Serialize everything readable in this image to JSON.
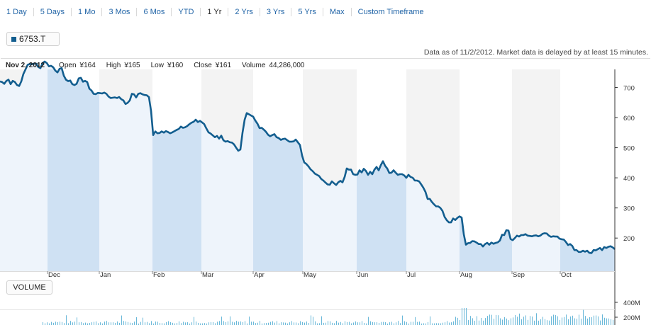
{
  "timeframes": [
    "1 Day",
    "5 Days",
    "1 Mo",
    "3 Mos",
    "6 Mos",
    "YTD",
    "1 Yr",
    "2 Yrs",
    "3 Yrs",
    "5 Yrs",
    "Max",
    "Custom Timeframe"
  ],
  "active_timeframe": "1 Yr",
  "ticker": "6753.T",
  "as_of_text": "Data as of 11/2/2012. Market data is delayed by at least 15 minutes.",
  "info": {
    "date": "Nov 2, 2012",
    "open_label": "Open",
    "open_value": "¥164",
    "high_label": "High",
    "high_value": "¥165",
    "low_label": "Low",
    "low_value": "¥160",
    "close_label": "Close",
    "close_value": "¥161",
    "volume_label": "Volume",
    "volume_value": "44,286,000"
  },
  "volume_button": "VOLUME",
  "colors": {
    "line": "#135e8f",
    "fill": "#cfe1f3",
    "band": "#f3f3f3",
    "vol": "#69b8d9"
  },
  "chart_data": {
    "type": "line",
    "months": [
      "Dec",
      "Jan",
      "Feb",
      "Mar",
      "Apr",
      "May",
      "Jun",
      "Jul",
      "Aug",
      "Sep",
      "Oct"
    ],
    "y_ticks": [
      200,
      300,
      400,
      500,
      600,
      700
    ],
    "ylim": [
      90,
      760
    ],
    "series": [
      {
        "points": [
          [
            0,
            720
          ],
          [
            3,
            718
          ],
          [
            6,
            712
          ],
          [
            9,
            722
          ],
          [
            12,
            726
          ],
          [
            15,
            711
          ],
          [
            18,
            722
          ],
          [
            21,
            718
          ],
          [
            24,
            708
          ],
          [
            27,
            705
          ],
          [
            30,
            720
          ],
          [
            33,
            745
          ],
          [
            36,
            760
          ],
          [
            39,
            775
          ],
          [
            42,
            778
          ],
          [
            45,
            777
          ],
          [
            48,
            779
          ],
          [
            51,
            779
          ],
          [
            54,
            768
          ],
          [
            57,
            764
          ],
          [
            60,
            781
          ],
          [
            63,
            786
          ],
          [
            66,
            781
          ],
          [
            69,
            770
          ],
          [
            72,
            772
          ],
          [
            75,
            767
          ],
          [
            78,
            756
          ],
          [
            81,
            750
          ],
          [
            84,
            762
          ],
          [
            87,
            764
          ],
          [
            90,
            739
          ],
          [
            93,
            726
          ],
          [
            96,
            721
          ],
          [
            99,
            723
          ],
          [
            102,
            711
          ],
          [
            105,
            708
          ],
          [
            108,
            712
          ],
          [
            111,
            730
          ],
          [
            114,
            732
          ],
          [
            117,
            719
          ],
          [
            120,
            722
          ],
          [
            123,
            718
          ],
          [
            126,
            696
          ],
          [
            129,
            690
          ],
          [
            132,
            679
          ],
          [
            135,
            678
          ],
          [
            138,
            682
          ],
          [
            141,
            681
          ],
          [
            144,
            680
          ],
          [
            147,
            683
          ],
          [
            150,
            679
          ],
          [
            153,
            670
          ],
          [
            156,
            665
          ],
          [
            159,
            666
          ],
          [
            162,
            667
          ],
          [
            165,
            665
          ],
          [
            168,
            668
          ],
          [
            171,
            661
          ],
          [
            174,
            657
          ],
          [
            177,
            645
          ],
          [
            180,
            649
          ],
          [
            183,
            657
          ],
          [
            186,
            679
          ],
          [
            189,
            677
          ],
          [
            192,
            667
          ],
          [
            195,
            679
          ],
          [
            198,
            681
          ],
          [
            201,
            677
          ],
          [
            204,
            675
          ],
          [
            207,
            674
          ],
          [
            210,
            668
          ],
          [
            213,
            622
          ],
          [
            216,
            542
          ],
          [
            219,
            554
          ],
          [
            222,
            548
          ],
          [
            225,
            549
          ],
          [
            228,
            554
          ],
          [
            231,
            550
          ],
          [
            234,
            555
          ],
          [
            237,
            552
          ],
          [
            240,
            548
          ],
          [
            243,
            551
          ],
          [
            246,
            555
          ],
          [
            249,
            559
          ],
          [
            252,
            562
          ],
          [
            255,
            570
          ],
          [
            258,
            566
          ],
          [
            261,
            568
          ],
          [
            264,
            572
          ],
          [
            267,
            578
          ],
          [
            270,
            583
          ],
          [
            273,
            586
          ],
          [
            276,
            593
          ],
          [
            279,
            585
          ],
          [
            282,
            589
          ],
          [
            285,
            584
          ],
          [
            288,
            578
          ],
          [
            291,
            564
          ],
          [
            294,
            551
          ],
          [
            297,
            547
          ],
          [
            300,
            541
          ],
          [
            303,
            535
          ],
          [
            306,
            539
          ],
          [
            309,
            530
          ],
          [
            312,
            540
          ],
          [
            315,
            525
          ],
          [
            318,
            520
          ],
          [
            321,
            522
          ],
          [
            324,
            518
          ],
          [
            327,
            517
          ],
          [
            330,
            511
          ],
          [
            333,
            500
          ],
          [
            336,
            490
          ],
          [
            339,
            494
          ],
          [
            342,
            550
          ],
          [
            345,
            593
          ],
          [
            348,
            615
          ],
          [
            351,
            611
          ],
          [
            354,
            607
          ],
          [
            357,
            603
          ],
          [
            360,
            590
          ],
          [
            363,
            580
          ],
          [
            366,
            565
          ],
          [
            369,
            566
          ],
          [
            372,
            560
          ],
          [
            375,
            553
          ],
          [
            378,
            543
          ],
          [
            381,
            538
          ],
          [
            384,
            542
          ],
          [
            387,
            545
          ],
          [
            390,
            535
          ],
          [
            393,
            532
          ],
          [
            396,
            526
          ],
          [
            399,
            529
          ],
          [
            402,
            530
          ],
          [
            405,
            525
          ],
          [
            408,
            520
          ],
          [
            411,
            520
          ],
          [
            414,
            521
          ],
          [
            417,
            527
          ],
          [
            420,
            518
          ],
          [
            423,
            509
          ],
          [
            426,
            474
          ],
          [
            429,
            451
          ],
          [
            432,
            446
          ],
          [
            435,
            438
          ],
          [
            438,
            428
          ],
          [
            441,
            422
          ],
          [
            444,
            414
          ],
          [
            447,
            410
          ],
          [
            450,
            406
          ],
          [
            453,
            396
          ],
          [
            456,
            391
          ],
          [
            459,
            384
          ],
          [
            462,
            378
          ],
          [
            465,
            377
          ],
          [
            468,
            388
          ],
          [
            471,
            382
          ],
          [
            474,
            376
          ],
          [
            477,
            385
          ],
          [
            480,
            390
          ],
          [
            483,
            385
          ],
          [
            486,
            403
          ],
          [
            489,
            431
          ],
          [
            492,
            427
          ],
          [
            495,
            427
          ],
          [
            498,
            412
          ],
          [
            501,
            410
          ],
          [
            504,
            411
          ],
          [
            507,
            425
          ],
          [
            510,
            418
          ],
          [
            513,
            430
          ],
          [
            516,
            423
          ],
          [
            519,
            410
          ],
          [
            522,
            420
          ],
          [
            525,
            412
          ],
          [
            528,
            427
          ],
          [
            531,
            436
          ],
          [
            534,
            425
          ],
          [
            537,
            442
          ],
          [
            540,
            455
          ],
          [
            543,
            440
          ],
          [
            546,
            431
          ],
          [
            549,
            416
          ],
          [
            552,
            417
          ],
          [
            555,
            425
          ],
          [
            558,
            417
          ],
          [
            561,
            410
          ],
          [
            564,
            412
          ],
          [
            567,
            412
          ],
          [
            570,
            408
          ],
          [
            573,
            400
          ],
          [
            576,
            410
          ],
          [
            579,
            403
          ],
          [
            582,
            400
          ],
          [
            585,
            391
          ],
          [
            588,
            391
          ],
          [
            591,
            388
          ],
          [
            594,
            378
          ],
          [
            597,
            367
          ],
          [
            600,
            353
          ],
          [
            603,
            330
          ],
          [
            606,
            330
          ],
          [
            609,
            320
          ],
          [
            612,
            312
          ],
          [
            615,
            305
          ],
          [
            618,
            305
          ],
          [
            621,
            300
          ],
          [
            624,
            290
          ],
          [
            627,
            270
          ],
          [
            630,
            259
          ],
          [
            633,
            252
          ],
          [
            636,
            252
          ],
          [
            639,
            265
          ],
          [
            642,
            260
          ],
          [
            645,
            267
          ],
          [
            648,
            272
          ],
          [
            651,
            268
          ],
          [
            654,
            213
          ],
          [
            657,
            178
          ],
          [
            660,
            183
          ],
          [
            663,
            184
          ],
          [
            666,
            190
          ],
          [
            669,
            189
          ],
          [
            672,
            185
          ],
          [
            675,
            180
          ],
          [
            678,
            180
          ],
          [
            681,
            172
          ],
          [
            684,
            180
          ],
          [
            687,
            184
          ],
          [
            690,
            178
          ],
          [
            693,
            185
          ],
          [
            696,
            181
          ],
          [
            699,
            184
          ],
          [
            702,
            186
          ],
          [
            705,
            192
          ],
          [
            708,
            211
          ],
          [
            711,
            210
          ],
          [
            714,
            226
          ],
          [
            717,
            225
          ],
          [
            720,
            197
          ],
          [
            723,
            193
          ],
          [
            726,
            200
          ],
          [
            729,
            208
          ],
          [
            732,
            205
          ],
          [
            735,
            210
          ],
          [
            738,
            210
          ],
          [
            741,
            213
          ],
          [
            744,
            208
          ],
          [
            747,
            207
          ],
          [
            750,
            206
          ],
          [
            753,
            208
          ],
          [
            756,
            209
          ],
          [
            759,
            206
          ],
          [
            762,
            208
          ],
          [
            765,
            214
          ],
          [
            768,
            216
          ],
          [
            771,
            215
          ],
          [
            774,
            208
          ],
          [
            777,
            204
          ],
          [
            780,
            206
          ],
          [
            783,
            205
          ],
          [
            786,
            205
          ],
          [
            789,
            198
          ],
          [
            792,
            196
          ],
          [
            795,
            195
          ],
          [
            798,
            187
          ],
          [
            801,
            177
          ],
          [
            804,
            180
          ],
          [
            807,
            174
          ],
          [
            810,
            160
          ],
          [
            813,
            160
          ],
          [
            816,
            154
          ],
          [
            819,
            154
          ],
          [
            822,
            158
          ],
          [
            825,
            155
          ],
          [
            828,
            158
          ],
          [
            831,
            151
          ],
          [
            834,
            150
          ],
          [
            837,
            160
          ],
          [
            840,
            159
          ],
          [
            843,
            163
          ],
          [
            846,
            167
          ],
          [
            849,
            160
          ],
          [
            852,
            170
          ],
          [
            855,
            167
          ],
          [
            858,
            171
          ],
          [
            861,
            173
          ],
          [
            864,
            169
          ],
          [
            867,
            163
          ]
        ]
      }
    ]
  },
  "volume_axis": [
    "400M",
    "200M"
  ]
}
